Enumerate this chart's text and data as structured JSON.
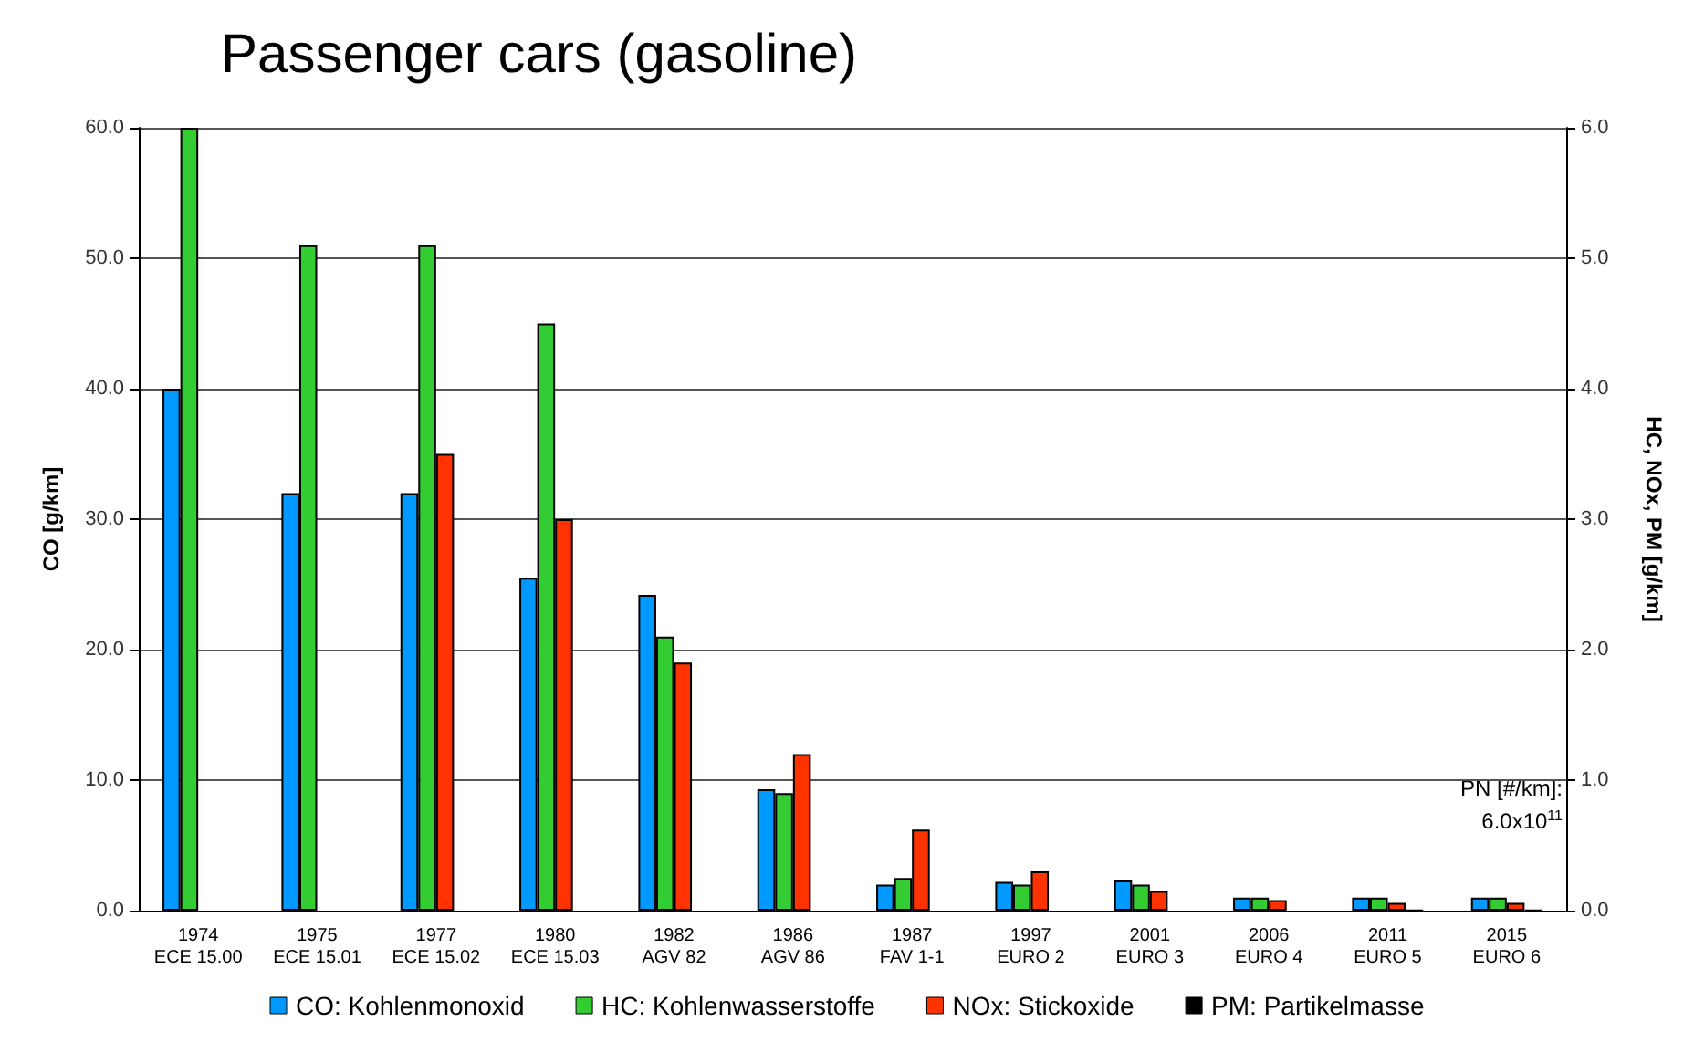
{
  "chart_data": {
    "type": "bar",
    "title": "Passenger cars (gasoline)",
    "ylabel": "CO [g/km]",
    "y2label": "HC, NOx, PM [g/km]",
    "categories": [
      "1974\nECE 15.00",
      "1975\nECE 15.01",
      "1977\nECE 15.02",
      "1980\nECE 15.03",
      "1982\nAGV 82",
      "1986\nAGV 86",
      "1987\nFAV 1-1",
      "1997\nEURO 2",
      "2001\nEURO 3",
      "2006\nEURO 4",
      "2011\nEURO 5",
      "2015\nEURO 6"
    ],
    "series": [
      {
        "name": "CO: Kohlenmonoxid",
        "color": "#0099ff",
        "values": [
          40,
          32,
          32,
          25.5,
          24.2,
          9.3,
          2.0,
          2.2,
          2.3,
          1.0,
          1.0,
          1.0
        ]
      },
      {
        "name": "HC: Kohlenwasserstoffe",
        "color": "#33cc33",
        "axis": "y2",
        "values": [
          6.0,
          5.1,
          5.1,
          4.5,
          2.1,
          0.9,
          0.25,
          0.2,
          0.2,
          0.1,
          0.1,
          0.1
        ]
      },
      {
        "name": "NOx: Stickoxide",
        "color": "#ff3300",
        "axis": "y2",
        "values": [
          null,
          null,
          3.5,
          3.0,
          1.9,
          1.2,
          0.62,
          0.3,
          0.15,
          0.08,
          0.06,
          0.06
        ]
      },
      {
        "name": "PM: Partikelmasse",
        "color": "#000000",
        "axis": "y2",
        "values": [
          null,
          null,
          null,
          null,
          null,
          null,
          null,
          null,
          null,
          null,
          0.005,
          0.005
        ]
      }
    ],
    "ylim": [
      0,
      60
    ],
    "yticks": [
      {
        "value": 0,
        "label": "0.0"
      },
      {
        "value": 10,
        "label": "10.0"
      },
      {
        "value": 20,
        "label": "20.0"
      },
      {
        "value": 30,
        "label": "30.0"
      },
      {
        "value": 40,
        "label": "40.0"
      },
      {
        "value": 50,
        "label": "50.0"
      },
      {
        "value": 60,
        "label": "60.0"
      }
    ],
    "y2lim": [
      0,
      6
    ],
    "y2ticks": [
      {
        "value": 0,
        "label": "0.0"
      },
      {
        "value": 1,
        "label": "1.0"
      },
      {
        "value": 2,
        "label": "2.0"
      },
      {
        "value": 3,
        "label": "3.0"
      },
      {
        "value": 4,
        "label": "4.0"
      },
      {
        "value": 5,
        "label": "5.0"
      },
      {
        "value": 6,
        "label": "6.0"
      }
    ],
    "annotations": [
      "PN [#/km]:",
      "6.0x10$^{11}$"
    ],
    "grid": "y",
    "legend": "bottom"
  }
}
